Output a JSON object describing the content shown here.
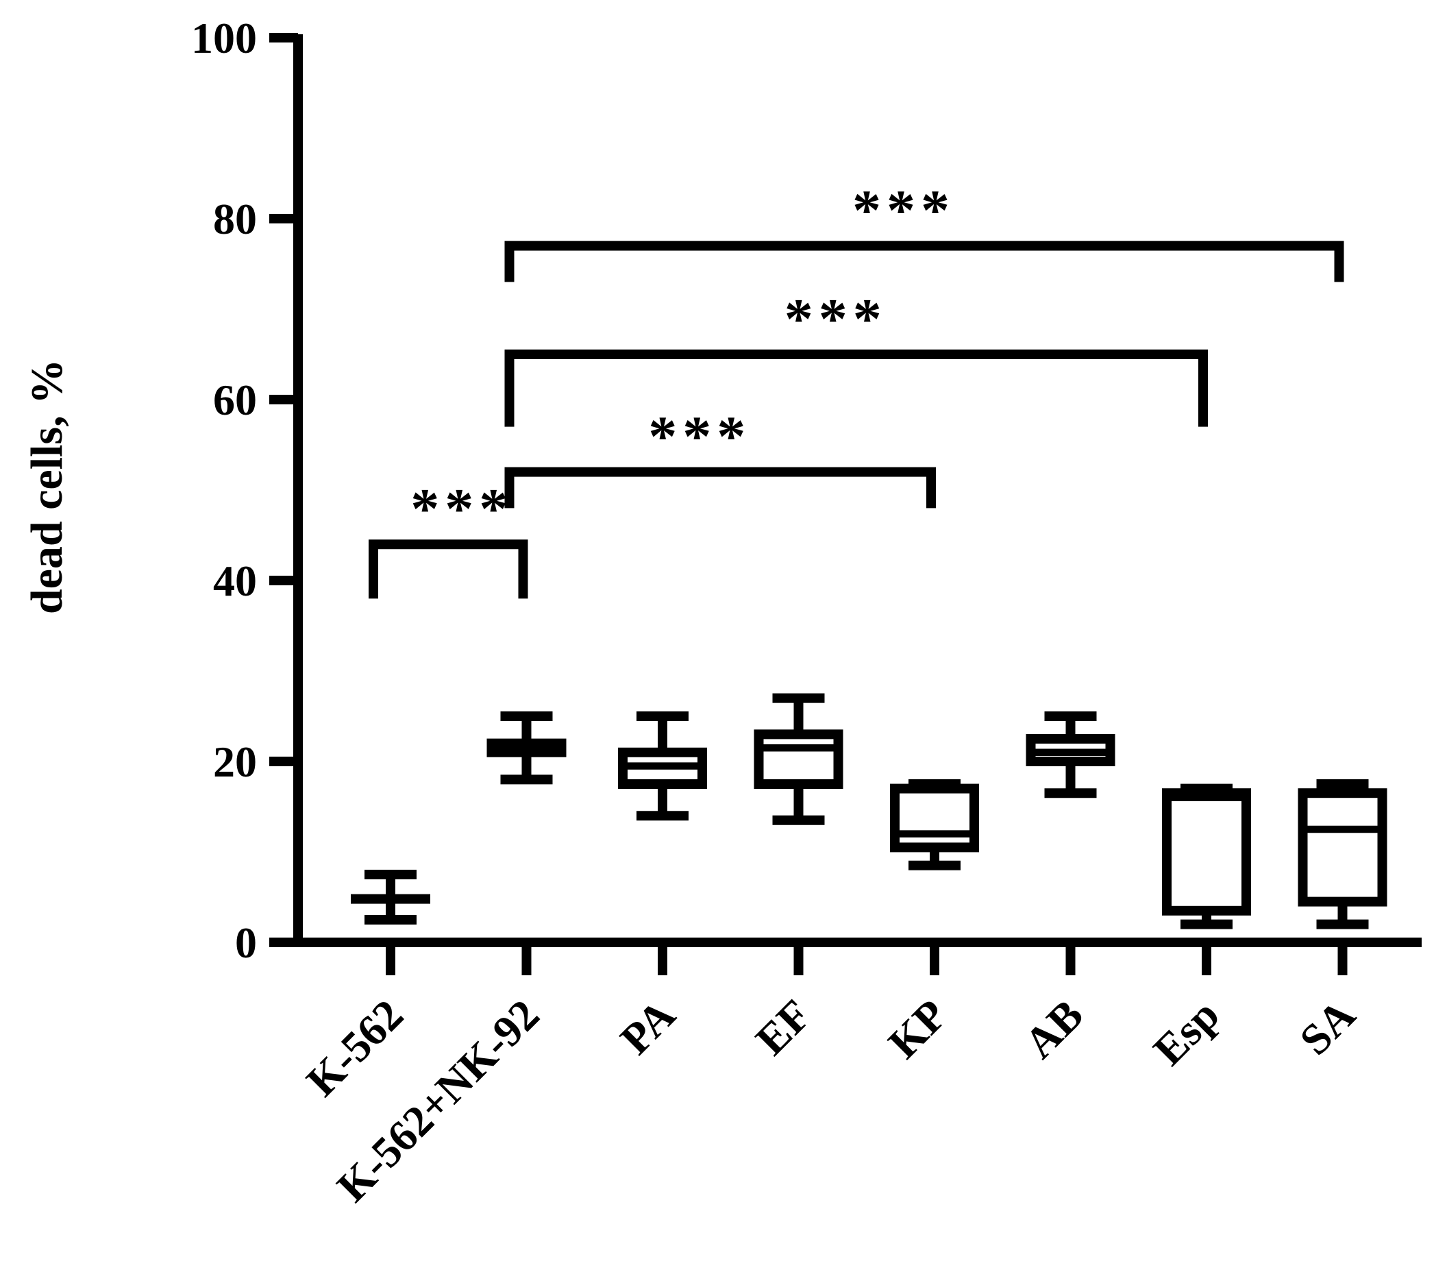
{
  "chart_data": {
    "type": "box",
    "ylabel": "dead cells, %",
    "xlabel": "",
    "ylim": [
      0,
      100
    ],
    "yticks": [
      0,
      20,
      40,
      60,
      80,
      100
    ],
    "yticks_labels": [
      "0",
      "20",
      "40",
      "60",
      "80",
      "100"
    ],
    "grid": false,
    "legend": "none",
    "categories": [
      "K-562",
      "K-562+NK-92",
      "PA",
      "EF",
      "KP",
      "AB",
      "Esp",
      "SA"
    ],
    "boxes": [
      {
        "category": "K-562",
        "min": 2.5,
        "q1": 4.8,
        "median": 4.8,
        "q3": 4.8,
        "max": 7.5
      },
      {
        "category": "K-562+NK-92",
        "min": 18,
        "q1": 21,
        "median": 21.5,
        "q3": 22,
        "max": 25
      },
      {
        "category": "PA",
        "min": 14,
        "q1": 17.5,
        "median": 19.5,
        "q3": 21,
        "max": 25
      },
      {
        "category": "EF",
        "min": 13.5,
        "q1": 17.5,
        "median": 21.5,
        "q3": 23,
        "max": 27
      },
      {
        "category": "KP",
        "min": 8.5,
        "q1": 10.5,
        "median": 12,
        "q3": 17,
        "max": 17.5
      },
      {
        "category": "AB",
        "min": 16.5,
        "q1": 20,
        "median": 21,
        "q3": 22.5,
        "max": 25
      },
      {
        "category": "Esp",
        "min": 2,
        "q1": 3.5,
        "median": 16,
        "q3": 16.5,
        "max": 17
      },
      {
        "category": "SA",
        "min": 2,
        "q1": 4.5,
        "median": 12.5,
        "q3": 16.5,
        "max": 17.5
      }
    ],
    "significance": [
      {
        "from": "K-562",
        "to": "K-562+NK-92",
        "label": "***",
        "y": 44,
        "tick_drop": 6
      },
      {
        "from": "K-562+NK-92",
        "to": "KP",
        "label": "***",
        "y": 52,
        "tick_drop": 4
      },
      {
        "from": "K-562+NK-92",
        "to": "Esp",
        "label": "***",
        "y": 65,
        "tick_drop": 8
      },
      {
        "from": "K-562+NK-92",
        "to": "SA",
        "label": "***",
        "y": 77,
        "tick_drop": 4
      }
    ]
  },
  "colors": {
    "ink": "#000000",
    "background": "#ffffff"
  }
}
